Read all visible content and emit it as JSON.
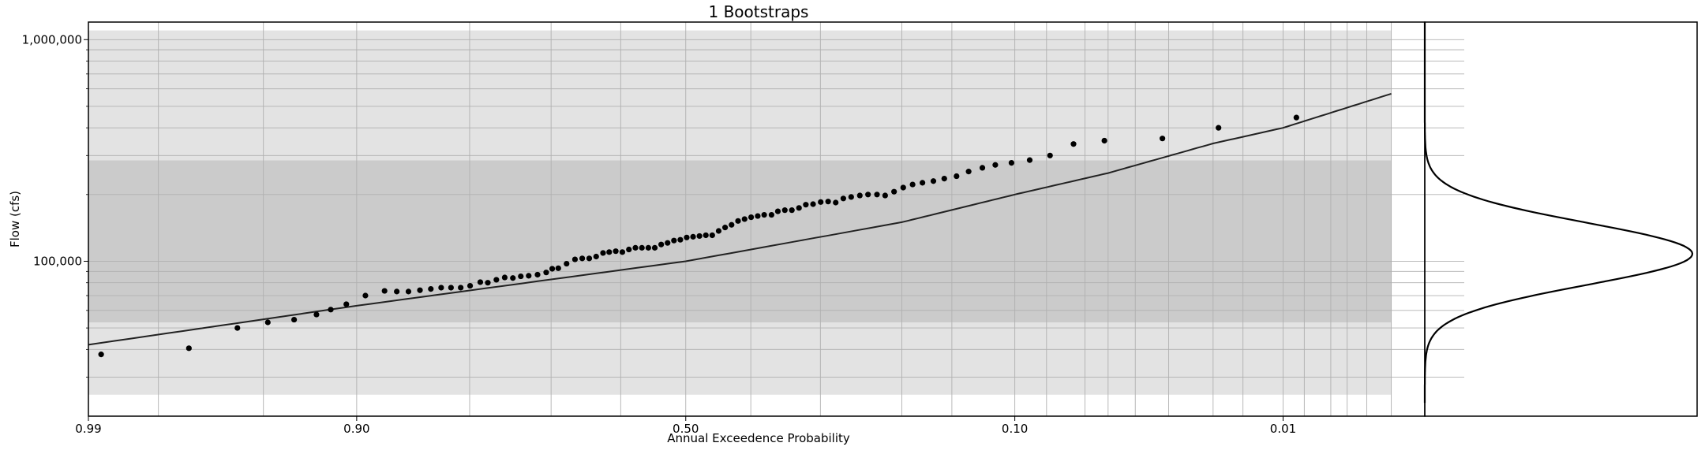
{
  "chart_data": [
    {
      "type": "scatter",
      "title": "1 Bootstraps",
      "xlabel": "Annual Exceedence Probability",
      "ylabel": "Flow (cfs)",
      "x_scale": "normal-probability",
      "y_scale": "log",
      "xlim": [
        0.99,
        0.002
      ],
      "ylim": [
        20000,
        1200000
      ],
      "grid": true,
      "x_ticks": [
        {
          "value": 0.99,
          "label": "0.99"
        },
        {
          "value": 0.9,
          "label": "0.90"
        },
        {
          "value": 0.5,
          "label": "0.50"
        },
        {
          "value": 0.1,
          "label": "0.10"
        },
        {
          "value": 0.01,
          "label": "0.01"
        }
      ],
      "y_ticks": [
        {
          "value": 100000,
          "label": "100,000"
        },
        {
          "value": 1000000,
          "label": "1,000,000"
        }
      ],
      "x_minor_ticks": [
        0.98,
        0.95,
        0.9,
        0.8,
        0.7,
        0.6,
        0.5,
        0.4,
        0.3,
        0.2,
        0.15,
        0.1,
        0.08,
        0.06,
        0.05,
        0.04,
        0.03,
        0.02,
        0.015,
        0.01,
        0.008,
        0.006,
        0.005,
        0.004,
        0.003
      ],
      "y_minor_ticks": [
        30000,
        40000,
        50000,
        60000,
        70000,
        80000,
        90000,
        200000,
        300000,
        400000,
        500000,
        600000,
        700000,
        800000,
        900000
      ],
      "bands": [
        {
          "name": "outer",
          "y_low": 25000,
          "y_high": 1100000,
          "x_from": 0.99,
          "x_to": 0.003,
          "color": "#e3e3e3"
        },
        {
          "name": "inner",
          "y_low": 53000,
          "y_high": 285000,
          "x_from": 0.99,
          "x_to": 0.003,
          "color": "#cbcbcb"
        }
      ],
      "fitted_curve": {
        "color": "#222222",
        "points": [
          [
            0.99,
            42000
          ],
          [
            0.9,
            63000
          ],
          [
            0.5,
            100000
          ],
          [
            0.2,
            150000
          ],
          [
            0.1,
            200000
          ],
          [
            0.05,
            250000
          ],
          [
            0.02,
            340000
          ],
          [
            0.01,
            400000
          ],
          [
            0.003,
            570000
          ]
        ]
      },
      "series": [
        {
          "color": "#000000",
          "x": [
            0.9886,
            0.9735,
            0.9596,
            0.9482,
            0.9364,
            0.9248,
            0.9166,
            0.9069,
            0.8939,
            0.8796,
            0.8698,
            0.8599,
            0.8497,
            0.8396,
            0.8296,
            0.8197,
            0.8096,
            0.7995,
            0.7882,
            0.7796,
            0.7696,
            0.7596,
            0.7496,
            0.7397,
            0.7296,
            0.7181,
            0.7066,
            0.6985,
            0.6902,
            0.6787,
            0.6669,
            0.6566,
            0.6465,
            0.6364,
            0.6263,
            0.6172,
            0.6074,
            0.5975,
            0.5876,
            0.5777,
            0.5678,
            0.5579,
            0.548,
            0.5381,
            0.5282,
            0.5183,
            0.5084,
            0.4985,
            0.4886,
            0.4787,
            0.4688,
            0.4589,
            0.449,
            0.4391,
            0.4292,
            0.4193,
            0.4094,
            0.3995,
            0.3896,
            0.38,
            0.3692,
            0.3599,
            0.3498,
            0.3397,
            0.3296,
            0.32,
            0.31,
            0.2996,
            0.2896,
            0.2796,
            0.2697,
            0.2597,
            0.2489,
            0.2389,
            0.2282,
            0.2187,
            0.2086,
            0.1985,
            0.1885,
            0.1783,
            0.1674,
            0.157,
            0.1458,
            0.1353,
            0.124,
            0.114,
            0.1023,
            0.0902,
            0.078,
            0.0655,
            0.0515,
            0.0317,
            0.019,
            0.0087
          ],
          "y": [
            38000,
            40500,
            50000,
            53000,
            54500,
            57500,
            60500,
            64000,
            70000,
            73500,
            73000,
            73000,
            74000,
            75000,
            76000,
            76000,
            76000,
            77500,
            80500,
            80000,
            82500,
            84500,
            84000,
            85500,
            86000,
            87000,
            89000,
            92500,
            93000,
            97500,
            102000,
            103000,
            103000,
            105000,
            109000,
            110000,
            111000,
            110000,
            113000,
            115000,
            115000,
            115000,
            115000,
            119000,
            121000,
            124000,
            125000,
            128000,
            129000,
            130000,
            131000,
            131000,
            137000,
            142000,
            146000,
            152000,
            155000,
            158000,
            160000,
            162000,
            162000,
            168000,
            170000,
            170000,
            174000,
            180000,
            181000,
            185000,
            186000,
            184000,
            192000,
            195000,
            198000,
            200000,
            200000,
            198000,
            206000,
            215000,
            222000,
            226000,
            230000,
            236000,
            242000,
            254000,
            264000,
            272000,
            278000,
            286000,
            300000,
            338000,
            350000,
            358000,
            400000,
            445000
          ]
        }
      ]
    },
    {
      "type": "line",
      "title": "",
      "xlabel": "",
      "ylabel": "",
      "orientation": "horizontal-density",
      "y_scale": "log",
      "ylim": [
        20000,
        1200000
      ],
      "grid": false,
      "series": [
        {
          "color": "#000000",
          "distribution": "log-normal",
          "median": 108000,
          "sigma_log10": 0.14
        }
      ]
    }
  ]
}
